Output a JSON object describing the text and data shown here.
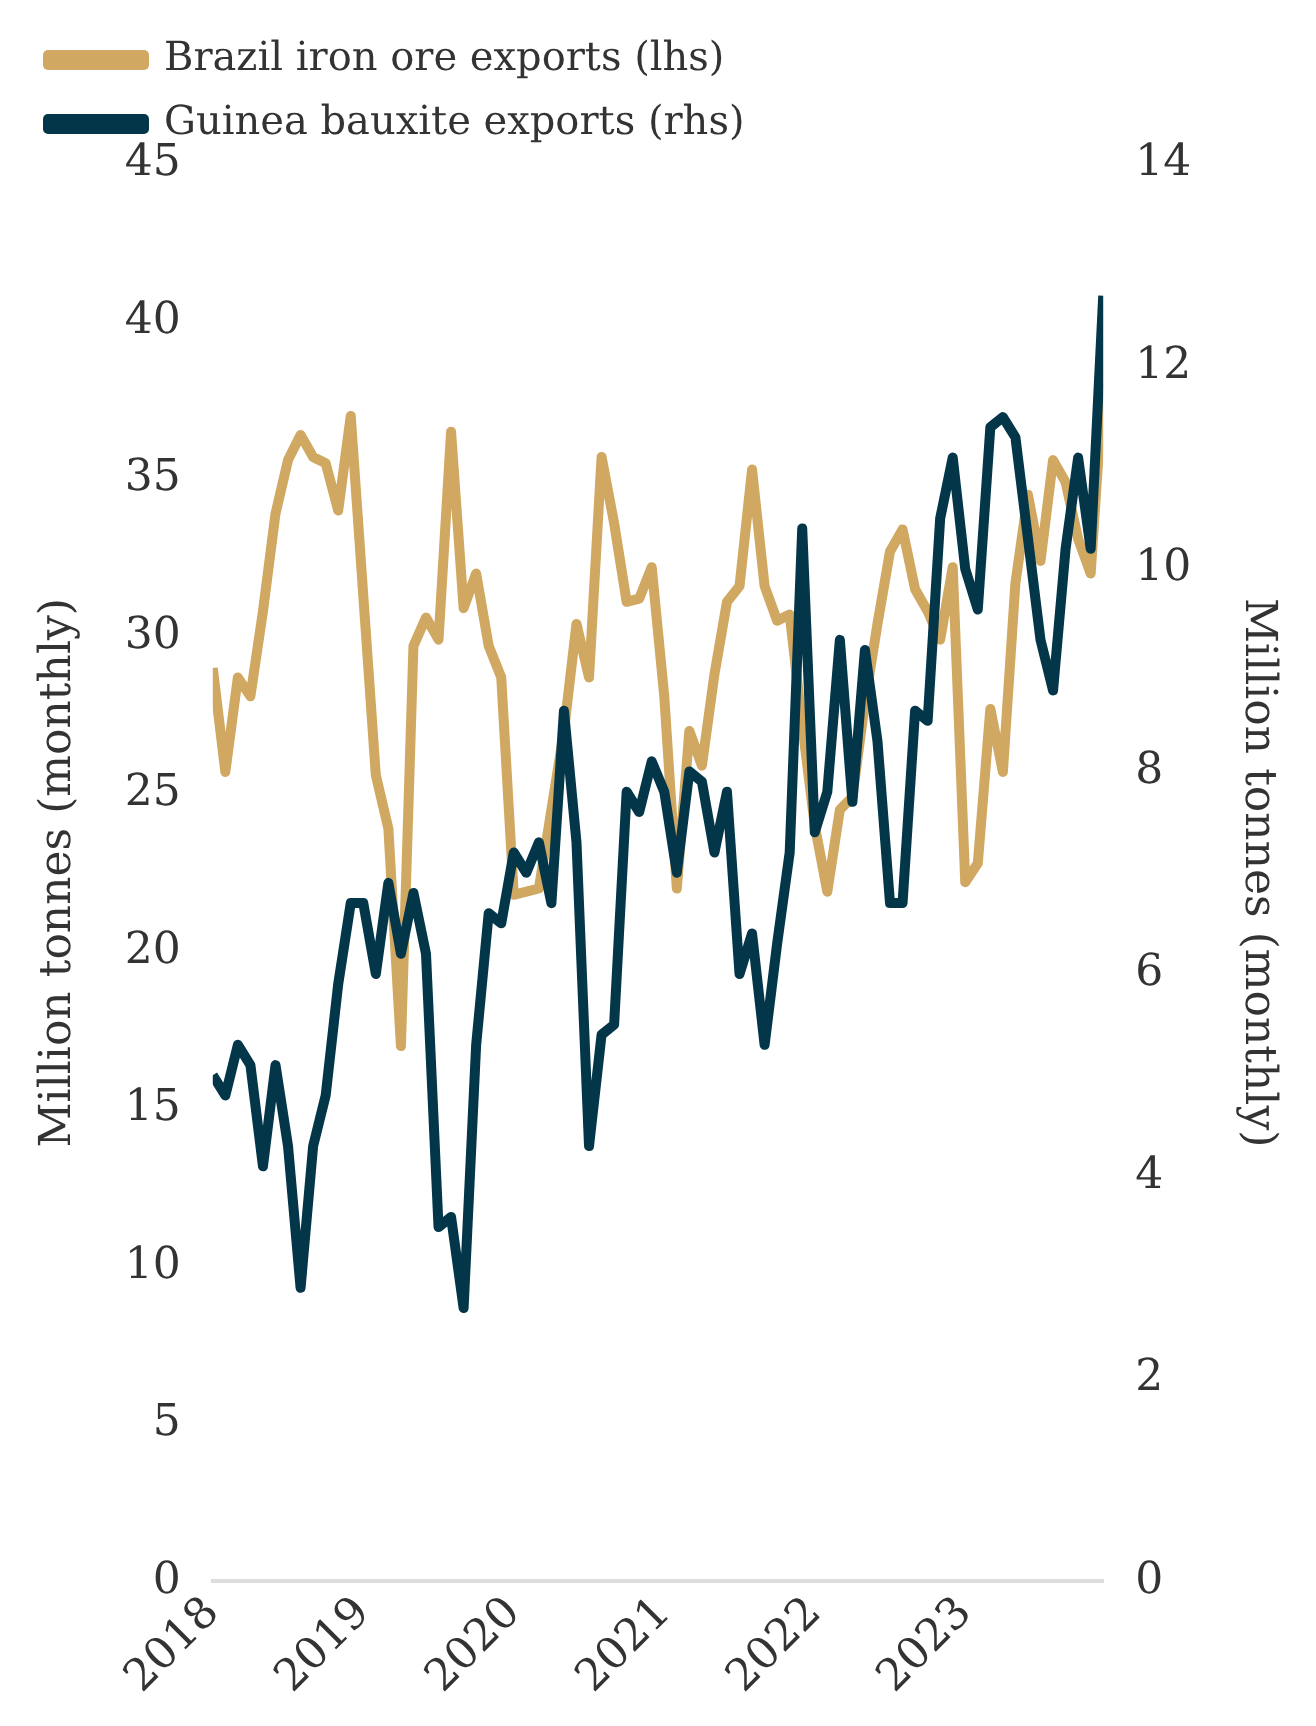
{
  "chart_data": {
    "type": "line",
    "ylabel": "Million tonnes (monthly)",
    "y2label": "Million tonnes (monthly)",
    "x": [
      "2018-01",
      "2018-02",
      "2018-03",
      "2018-04",
      "2018-05",
      "2018-06",
      "2018-07",
      "2018-08",
      "2018-09",
      "2018-10",
      "2018-11",
      "2018-12",
      "2019-01",
      "2019-02",
      "2019-03",
      "2019-04",
      "2019-05",
      "2019-06",
      "2019-07",
      "2019-08",
      "2019-09",
      "2019-10",
      "2019-11",
      "2019-12",
      "2020-01",
      "2020-02",
      "2020-03",
      "2020-04",
      "2020-05",
      "2020-06",
      "2020-07",
      "2020-08",
      "2020-09",
      "2020-10",
      "2020-11",
      "2020-12",
      "2021-01",
      "2021-02",
      "2021-03",
      "2021-04",
      "2021-05",
      "2021-06",
      "2021-07",
      "2021-08",
      "2021-09",
      "2021-10",
      "2021-11",
      "2021-12",
      "2022-01",
      "2022-02",
      "2022-03",
      "2022-04",
      "2022-05",
      "2022-06",
      "2022-07",
      "2022-08",
      "2022-09",
      "2022-10",
      "2022-11",
      "2022-12",
      "2023-01",
      "2023-02",
      "2023-03",
      "2023-04",
      "2023-05",
      "2023-06",
      "2023-07",
      "2023-08",
      "2023-09",
      "2023-10",
      "2023-11",
      "2023-12"
    ],
    "series": [
      {
        "name": "Brazil iron ore exports (lhs)",
        "color": "#d0a862",
        "values": [
          29.0,
          25.7,
          28.7,
          28.1,
          30.8,
          33.9,
          35.6,
          36.4,
          35.7,
          35.5,
          34.0,
          37.0,
          31.3,
          25.6,
          23.9,
          17.0,
          29.7,
          30.6,
          29.9,
          36.5,
          30.9,
          32.0,
          29.7,
          28.7,
          21.8,
          21.9,
          22.0,
          24.5,
          27.0,
          30.4,
          28.7,
          35.7,
          33.6,
          31.1,
          31.2,
          32.2,
          28.1,
          22.0,
          27.0,
          25.9,
          28.8,
          31.1,
          31.6,
          35.3,
          31.6,
          30.5,
          30.7,
          27.2,
          24.0,
          21.9,
          24.5,
          24.9,
          27.9,
          30.4,
          32.7,
          33.4,
          31.5,
          30.8,
          29.9,
          32.2,
          22.2,
          22.8,
          27.7,
          25.7,
          31.7,
          34.5,
          32.4,
          35.6,
          34.9,
          33.1,
          32.0,
          38.0
        ]
      },
      {
        "name": "Guinea bauxite exports (rhs)",
        "color": "#04364a",
        "axis": "y2",
        "values": [
          5.0,
          4.8,
          5.3,
          5.1,
          4.1,
          5.1,
          4.3,
          2.9,
          4.3,
          4.8,
          5.9,
          6.7,
          6.7,
          6.0,
          6.9,
          6.2,
          6.8,
          6.2,
          3.5,
          3.6,
          2.7,
          5.3,
          6.6,
          6.5,
          7.2,
          7.0,
          7.3,
          6.7,
          8.6,
          7.3,
          4.3,
          5.4,
          5.5,
          7.8,
          7.6,
          8.1,
          7.8,
          7.0,
          8.0,
          7.9,
          7.2,
          7.8,
          6.0,
          6.4,
          5.3,
          6.3,
          7.2,
          10.4,
          7.4,
          7.8,
          9.3,
          7.7,
          9.2,
          8.3,
          6.7,
          6.7,
          8.6,
          8.5,
          10.5,
          11.1,
          10.0,
          9.6,
          11.4,
          11.5,
          11.3,
          10.3,
          9.3,
          8.8,
          10.2,
          11.1,
          10.2,
          12.7
        ]
      }
    ],
    "xlim": [
      "2018-01",
      "2023-12"
    ],
    "xticks": [
      "2018",
      "2019",
      "2020",
      "2021",
      "2022",
      "2023"
    ],
    "ylim": [
      0,
      45
    ],
    "yticks": [
      0,
      5,
      10,
      15,
      20,
      25,
      30,
      35,
      40,
      45
    ],
    "y2lim": [
      0,
      14
    ],
    "y2ticks": [
      0,
      2,
      4,
      6,
      8,
      10,
      12,
      14
    ],
    "legend": "top",
    "grid": false,
    "marker": "none",
    "line_style": "solid"
  }
}
